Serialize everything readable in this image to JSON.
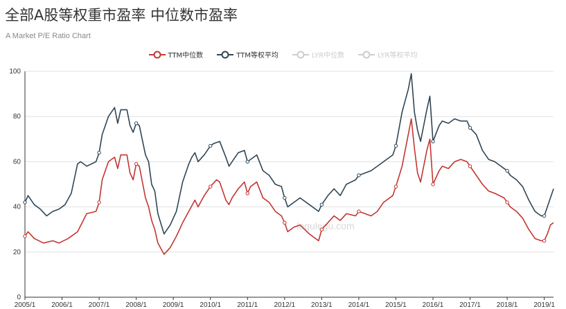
{
  "chart_data": {
    "type": "line",
    "title": "全部A股等权重市盈率 中位数市盈率",
    "subtitle": "A Market P/E Ratio Chart",
    "ylim": [
      0,
      100
    ],
    "y_ticks": [
      0,
      20,
      40,
      60,
      80,
      100
    ],
    "x_ticks": [
      "2005/1",
      "2006/1",
      "2007/1",
      "2008/1",
      "2009/1",
      "2010/1",
      "2011/1",
      "2012/1",
      "2013/1",
      "2014/1",
      "2015/1",
      "2016/1",
      "2017/1",
      "2018/1",
      "2019/1"
    ],
    "x_range": [
      "2005/1",
      "2019/4"
    ],
    "grid": "horizontal",
    "legend_position": "top-center",
    "watermark": "legulegu.com",
    "series": [
      {
        "name": "TTM中位数",
        "color": "#c23531",
        "visible": true,
        "points": [
          [
            "2005/1",
            27
          ],
          [
            "2005/2",
            29
          ],
          [
            "2005/4",
            26
          ],
          [
            "2005/7",
            24
          ],
          [
            "2005/10",
            25
          ],
          [
            "2005/12",
            24
          ],
          [
            "2006/3",
            26
          ],
          [
            "2006/6",
            29
          ],
          [
            "2006/9",
            37
          ],
          [
            "2006/12",
            38
          ],
          [
            "2007/1",
            42
          ],
          [
            "2007/2",
            52
          ],
          [
            "2007/4",
            60
          ],
          [
            "2007/6",
            62
          ],
          [
            "2007/7",
            57
          ],
          [
            "2007/8",
            63
          ],
          [
            "2007/10",
            63
          ],
          [
            "2007/11",
            55
          ],
          [
            "2007/12",
            52
          ],
          [
            "2008/1",
            59
          ],
          [
            "2008/2",
            58
          ],
          [
            "2008/4",
            44
          ],
          [
            "2008/5",
            40
          ],
          [
            "2008/6",
            34
          ],
          [
            "2008/7",
            30
          ],
          [
            "2008/8",
            24
          ],
          [
            "2008/10",
            19
          ],
          [
            "2008/12",
            22
          ],
          [
            "2009/2",
            27
          ],
          [
            "2009/4",
            33
          ],
          [
            "2009/6",
            38
          ],
          [
            "2009/8",
            43
          ],
          [
            "2009/9",
            40
          ],
          [
            "2009/11",
            45
          ],
          [
            "2010/1",
            49
          ],
          [
            "2010/3",
            52
          ],
          [
            "2010/4",
            51
          ],
          [
            "2010/6",
            43
          ],
          [
            "2010/7",
            41
          ],
          [
            "2010/8",
            44
          ],
          [
            "2010/10",
            48
          ],
          [
            "2010/12",
            51
          ],
          [
            "2011/1",
            46
          ],
          [
            "2011/2",
            49
          ],
          [
            "2011/4",
            51
          ],
          [
            "2011/6",
            44
          ],
          [
            "2011/8",
            42
          ],
          [
            "2011/10",
            38
          ],
          [
            "2011/12",
            36
          ],
          [
            "2012/1",
            33
          ],
          [
            "2012/2",
            29
          ],
          [
            "2012/4",
            31
          ],
          [
            "2012/6",
            32
          ],
          [
            "2012/9",
            28
          ],
          [
            "2012/12",
            25
          ],
          [
            "2013/1",
            30
          ],
          [
            "2013/3",
            33
          ],
          [
            "2013/5",
            36
          ],
          [
            "2013/7",
            34
          ],
          [
            "2013/9",
            37
          ],
          [
            "2013/12",
            36
          ],
          [
            "2014/1",
            38
          ],
          [
            "2014/3",
            37
          ],
          [
            "2014/5",
            36
          ],
          [
            "2014/7",
            38
          ],
          [
            "2014/9",
            42
          ],
          [
            "2014/12",
            45
          ],
          [
            "2015/1",
            49
          ],
          [
            "2015/3",
            58
          ],
          [
            "2015/5",
            72
          ],
          [
            "2015/6",
            79
          ],
          [
            "2015/7",
            66
          ],
          [
            "2015/8",
            55
          ],
          [
            "2015/9",
            51
          ],
          [
            "2015/11",
            65
          ],
          [
            "2015/12",
            70
          ],
          [
            "2016/1",
            50
          ],
          [
            "2016/3",
            56
          ],
          [
            "2016/4",
            58
          ],
          [
            "2016/6",
            57
          ],
          [
            "2016/8",
            60
          ],
          [
            "2016/10",
            61
          ],
          [
            "2016/12",
            60
          ],
          [
            "2017/1",
            58
          ],
          [
            "2017/3",
            54
          ],
          [
            "2017/5",
            50
          ],
          [
            "2017/7",
            47
          ],
          [
            "2017/9",
            46
          ],
          [
            "2017/12",
            44
          ],
          [
            "2018/1",
            42
          ],
          [
            "2018/2",
            40
          ],
          [
            "2018/4",
            38
          ],
          [
            "2018/6",
            35
          ],
          [
            "2018/8",
            30
          ],
          [
            "2018/10",
            26
          ],
          [
            "2018/12",
            25
          ],
          [
            "2019/1",
            25
          ],
          [
            "2019/2",
            28
          ],
          [
            "2019/3",
            32
          ],
          [
            "2019/4",
            33
          ]
        ]
      },
      {
        "name": "TTM等权平均",
        "color": "#2f4554",
        "visible": true,
        "points": [
          [
            "2005/1",
            42
          ],
          [
            "2005/2",
            45
          ],
          [
            "2005/4",
            41
          ],
          [
            "2005/6",
            39
          ],
          [
            "2005/8",
            36
          ],
          [
            "2005/10",
            38
          ],
          [
            "2005/12",
            39
          ],
          [
            "2006/2",
            41
          ],
          [
            "2006/4",
            46
          ],
          [
            "2006/6",
            59
          ],
          [
            "2006/7",
            60
          ],
          [
            "2006/9",
            58
          ],
          [
            "2006/12",
            60
          ],
          [
            "2007/1",
            64
          ],
          [
            "2007/2",
            72
          ],
          [
            "2007/4",
            80
          ],
          [
            "2007/6",
            84
          ],
          [
            "2007/7",
            77
          ],
          [
            "2007/8",
            83
          ],
          [
            "2007/10",
            83
          ],
          [
            "2007/11",
            76
          ],
          [
            "2007/12",
            73
          ],
          [
            "2008/1",
            77
          ],
          [
            "2008/2",
            76
          ],
          [
            "2008/4",
            63
          ],
          [
            "2008/5",
            60
          ],
          [
            "2008/6",
            50
          ],
          [
            "2008/7",
            47
          ],
          [
            "2008/8",
            37
          ],
          [
            "2008/10",
            28
          ],
          [
            "2008/12",
            32
          ],
          [
            "2009/2",
            38
          ],
          [
            "2009/4",
            51
          ],
          [
            "2009/6",
            59
          ],
          [
            "2009/7",
            62
          ],
          [
            "2009/8",
            64
          ],
          [
            "2009/9",
            60
          ],
          [
            "2009/11",
            63
          ],
          [
            "2010/1",
            67
          ],
          [
            "2010/2",
            68
          ],
          [
            "2010/4",
            69
          ],
          [
            "2010/6",
            62
          ],
          [
            "2010/7",
            58
          ],
          [
            "2010/8",
            60
          ],
          [
            "2010/10",
            64
          ],
          [
            "2010/12",
            65
          ],
          [
            "2011/1",
            60
          ],
          [
            "2011/3",
            62
          ],
          [
            "2011/4",
            63
          ],
          [
            "2011/6",
            56
          ],
          [
            "2011/8",
            54
          ],
          [
            "2011/10",
            50
          ],
          [
            "2011/12",
            49
          ],
          [
            "2012/1",
            44
          ],
          [
            "2012/2",
            40
          ],
          [
            "2012/4",
            42
          ],
          [
            "2012/6",
            44
          ],
          [
            "2012/9",
            41
          ],
          [
            "2012/12",
            38
          ],
          [
            "2013/1",
            41
          ],
          [
            "2013/3",
            45
          ],
          [
            "2013/5",
            48
          ],
          [
            "2013/7",
            45
          ],
          [
            "2013/9",
            50
          ],
          [
            "2013/12",
            52
          ],
          [
            "2014/1",
            54
          ],
          [
            "2014/3",
            55
          ],
          [
            "2014/5",
            56
          ],
          [
            "2014/7",
            58
          ],
          [
            "2014/9",
            60
          ],
          [
            "2014/12",
            63
          ],
          [
            "2015/1",
            67
          ],
          [
            "2015/3",
            82
          ],
          [
            "2015/5",
            92
          ],
          [
            "2015/6",
            99
          ],
          [
            "2015/7",
            82
          ],
          [
            "2015/8",
            74
          ],
          [
            "2015/9",
            69
          ],
          [
            "2015/11",
            83
          ],
          [
            "2015/12",
            89
          ],
          [
            "2016/1",
            69
          ],
          [
            "2016/3",
            76
          ],
          [
            "2016/4",
            78
          ],
          [
            "2016/6",
            77
          ],
          [
            "2016/8",
            79
          ],
          [
            "2016/10",
            78
          ],
          [
            "2016/12",
            78
          ],
          [
            "2017/1",
            75
          ],
          [
            "2017/3",
            72
          ],
          [
            "2017/5",
            65
          ],
          [
            "2017/7",
            61
          ],
          [
            "2017/9",
            60
          ],
          [
            "2017/12",
            57
          ],
          [
            "2018/1",
            56
          ],
          [
            "2018/2",
            54
          ],
          [
            "2018/4",
            52
          ],
          [
            "2018/6",
            49
          ],
          [
            "2018/8",
            43
          ],
          [
            "2018/10",
            38
          ],
          [
            "2018/12",
            36
          ],
          [
            "2019/1",
            36
          ],
          [
            "2019/2",
            40
          ],
          [
            "2019/3",
            44
          ],
          [
            "2019/4",
            48
          ]
        ]
      },
      {
        "name": "LYR中位数",
        "color": "#cccccc",
        "visible": false,
        "points": []
      },
      {
        "name": "LYR等权平均",
        "color": "#cccccc",
        "visible": false,
        "points": []
      }
    ]
  }
}
